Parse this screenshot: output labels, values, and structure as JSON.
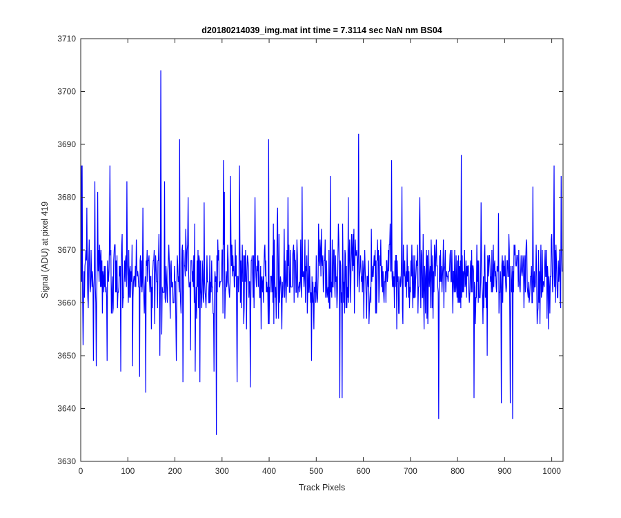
{
  "chart_data": {
    "type": "line",
    "title": "d20180214039_img.mat int time = 7.3114 sec  NaN nm BS04",
    "xlabel": "Track Pixels",
    "ylabel": "Signal (ADU) at pixel 419",
    "xlim": [
      0,
      1024
    ],
    "ylim": [
      3630,
      3710
    ],
    "xticks": [
      0,
      100,
      200,
      300,
      400,
      500,
      600,
      700,
      800,
      900,
      1000
    ],
    "yticks": [
      3630,
      3640,
      3650,
      3660,
      3670,
      3680,
      3690,
      3700,
      3710
    ],
    "grid": false,
    "legend": "none",
    "series": [
      {
        "color": "#0000ff",
        "n_points": 1024,
        "baseline": 3665,
        "noise_range": [
          3645,
          3685
        ],
        "x": [
          0,
          1,
          2,
          3,
          5,
          7,
          13,
          18,
          23,
          27,
          30,
          33,
          36,
          45,
          56,
          62,
          66,
          85,
          98,
          110,
          125,
          132,
          138,
          150,
          168,
          170,
          172,
          178,
          188,
          203,
          210,
          217,
          228,
          233,
          243,
          253,
          262,
          272,
          283,
          288,
          300,
          303,
          305,
          318,
          332,
          337,
          352,
          360,
          370,
          399,
          418,
          440,
          470,
          490,
          530,
          550,
          553,
          555,
          568,
          590,
          612,
          633,
          660,
          666,
          682,
          700,
          720,
          735,
          760,
          790,
          808,
          820,
          835,
          850,
          863,
          887,
          893,
          912,
          917,
          960,
          1005,
          1020
        ],
        "y": [
          3660,
          3686,
          3664,
          3686,
          3652,
          3666,
          3678,
          3672,
          3665,
          3649,
          3683,
          3648,
          3681,
          3668,
          3649,
          3686,
          3661,
          3647,
          3683,
          3648,
          3646,
          3678,
          3643,
          3655,
          3650,
          3704,
          3654,
          3683,
          3668,
          3649,
          3691,
          3645,
          3680,
          3651,
          3647,
          3645,
          3679,
          3660,
          3647,
          3635,
          3670,
          3687,
          3681,
          3684,
          3645,
          3686,
          3655,
          3644,
          3680,
          3691,
          3678,
          3680,
          3682,
          3649,
          3684,
          3642,
          3660,
          3642,
          3680,
          3692,
          3656,
          3660,
          3687,
          3659,
          3682,
          3662,
          3680,
          3657,
          3638,
          3658,
          3688,
          3667,
          3642,
          3679,
          3650,
          3677,
          3641,
          3641,
          3638,
          3682,
          3686,
          3684
        ]
      }
    ]
  }
}
